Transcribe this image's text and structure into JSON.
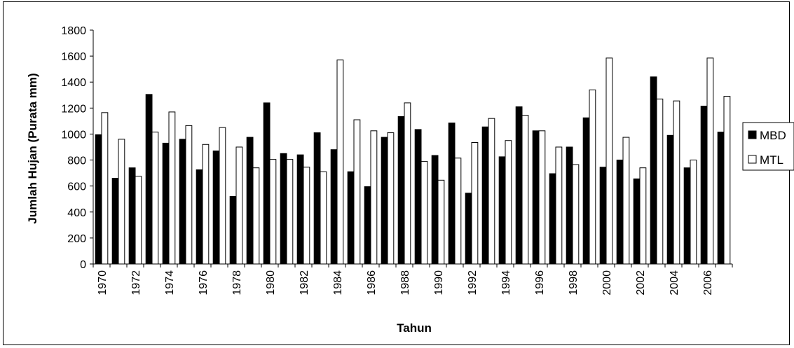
{
  "chart_data": {
    "type": "bar",
    "title": "",
    "xlabel": "Tahun",
    "ylabel": "Jumlah Hujan (Purata mm)",
    "ylim": [
      0,
      1800
    ],
    "yticks": [
      0,
      200,
      400,
      600,
      800,
      1000,
      1200,
      1400,
      1600,
      1800
    ],
    "categories": [
      "1970",
      "1971",
      "1972",
      "1973",
      "1974",
      "1975",
      "1976",
      "1977",
      "1978",
      "1979",
      "1980",
      "1981",
      "1982",
      "1983",
      "1984",
      "1985",
      "1986",
      "1987",
      "1988",
      "1989",
      "1990",
      "1991",
      "1992",
      "1993",
      "1994",
      "1995",
      "1996",
      "1997",
      "1998",
      "1999",
      "2000",
      "2001",
      "2002",
      "2003",
      "2004",
      "2005",
      "2006",
      "2007"
    ],
    "xtick_labels": [
      "1970",
      "",
      "1972",
      "",
      "1974",
      "",
      "1976",
      "",
      "1978",
      "",
      "1980",
      "",
      "1982",
      "",
      "1984",
      "",
      "1986",
      "",
      "1988",
      "",
      "1990",
      "",
      "1992",
      "",
      "1994",
      "",
      "1996",
      "",
      "1998",
      "",
      "2000",
      "",
      "2002",
      "",
      "2004",
      "",
      "2006",
      ""
    ],
    "series": [
      {
        "name": "MBD",
        "color": "#000000",
        "values": [
          995,
          660,
          740,
          1305,
          930,
          960,
          725,
          870,
          520,
          975,
          1240,
          850,
          840,
          1010,
          880,
          710,
          595,
          975,
          1135,
          1035,
          835,
          1085,
          545,
          1055,
          825,
          1210,
          1025,
          695,
          900,
          1125,
          745,
          800,
          655,
          1440,
          990,
          740,
          1215,
          1015
        ]
      },
      {
        "name": "MTL",
        "color": "#ffffff",
        "values": [
          1165,
          960,
          675,
          1015,
          1170,
          1065,
          920,
          1050,
          900,
          740,
          805,
          805,
          745,
          710,
          1570,
          1110,
          1025,
          1010,
          1240,
          790,
          645,
          815,
          935,
          1120,
          950,
          1145,
          1025,
          900,
          765,
          1340,
          1585,
          975,
          740,
          1270,
          1255,
          800,
          1585,
          1290
        ]
      }
    ],
    "grid": false,
    "legend": "right"
  }
}
